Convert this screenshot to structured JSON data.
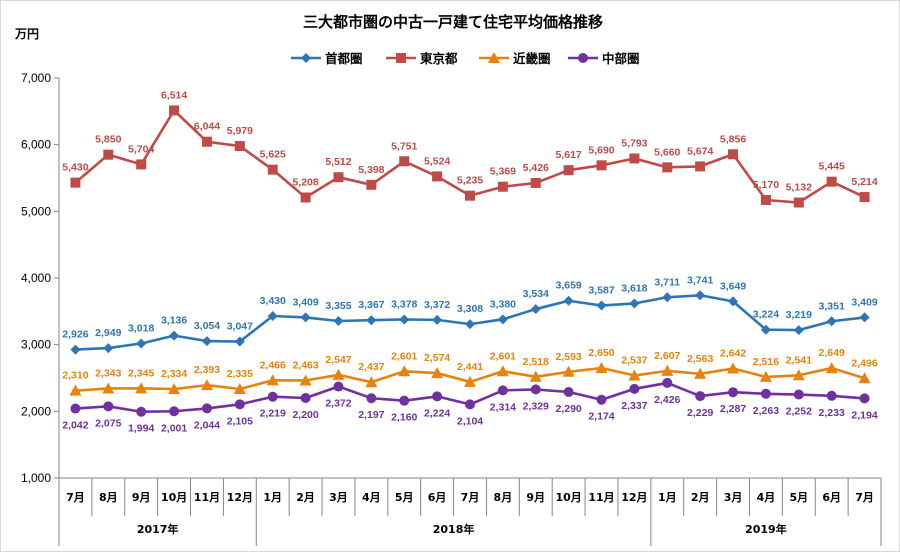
{
  "chart_data": {
    "type": "line",
    "title": "三大都市圏の中古一戸建て住宅平均価格推移",
    "ylabel": "万円",
    "ylim": [
      1000,
      7000
    ],
    "yticks": [
      "1,000",
      "2,000",
      "3,000",
      "4,000",
      "5,000",
      "6,000",
      "7,000"
    ],
    "categories": [
      "7月",
      "8月",
      "9月",
      "10月",
      "11月",
      "12月",
      "1月",
      "2月",
      "3月",
      "4月",
      "5月",
      "6月",
      "7月",
      "8月",
      "9月",
      "10月",
      "11月",
      "12月",
      "1月",
      "2月",
      "3月",
      "4月",
      "5月",
      "6月",
      "7月"
    ],
    "year_groups": [
      {
        "label": "2017年",
        "count": 6
      },
      {
        "label": "2018年",
        "count": 12
      },
      {
        "label": "2019年",
        "count": 7
      }
    ],
    "grid": false,
    "legend_position": "top",
    "series": [
      {
        "name": "首都圏",
        "color": "#2e75b6",
        "marker": "diamond",
        "label_position": "above",
        "values": [
          2926,
          2949,
          3018,
          3136,
          3054,
          3047,
          3430,
          3409,
          3355,
          3367,
          3378,
          3372,
          3308,
          3380,
          3534,
          3659,
          3587,
          3618,
          3711,
          3741,
          3649,
          3224,
          3219,
          3351,
          3409
        ],
        "labels": [
          "2,926",
          "2,949",
          "3,018",
          "3,136",
          "3,054",
          "3,047",
          "3,430",
          "3,409",
          "3,355",
          "3,367",
          "3,378",
          "3,372",
          "3,308",
          "3,380",
          "3,534",
          "3,659",
          "3,587",
          "3,618",
          "3,711",
          "3,741",
          "3,649",
          "3,224",
          "3,219",
          "3,351",
          "3,409"
        ]
      },
      {
        "name": "東京都",
        "color": "#be4b48",
        "marker": "square",
        "label_position": "above",
        "values": [
          5430,
          5850,
          5704,
          6514,
          6044,
          5979,
          5625,
          5208,
          5512,
          5398,
          5751,
          5524,
          5235,
          5369,
          5426,
          5617,
          5690,
          5793,
          5660,
          5674,
          5856,
          5170,
          5132,
          5445,
          5214
        ],
        "labels": [
          "5,430",
          "5,850",
          "5,704",
          "6,514",
          "6,044",
          "5,979",
          "5,625",
          "5,208",
          "5,512",
          "5,398",
          "5,751",
          "5,524",
          "5,235",
          "5,369",
          "5,426",
          "5,617",
          "5,690",
          "5,793",
          "5,660",
          "5,674",
          "5,856",
          "5,170",
          "5,132",
          "5,445",
          "5,214"
        ]
      },
      {
        "name": "近畿圏",
        "color": "#e8820c",
        "marker": "triangle",
        "label_position": "above",
        "values": [
          2310,
          2343,
          2345,
          2334,
          2393,
          2335,
          2466,
          2463,
          2547,
          2437,
          2601,
          2574,
          2441,
          2601,
          2518,
          2593,
          2650,
          2537,
          2607,
          2563,
          2642,
          2516,
          2541,
          2649,
          2496
        ],
        "labels": [
          "2,310",
          "2,343",
          "2,345",
          "2,334",
          "2,393",
          "2,335",
          "2,466",
          "2,463",
          "2,547",
          "2,437",
          "2,601",
          "2,574",
          "2,441",
          "2,601",
          "2,518",
          "2,593",
          "2,650",
          "2,537",
          "2,607",
          "2,563",
          "2,642",
          "2,516",
          "2,541",
          "2,649",
          "2,496"
        ]
      },
      {
        "name": "中部圏",
        "color": "#7030a0",
        "marker": "circle",
        "label_position": "below",
        "values": [
          2042,
          2075,
          1994,
          2001,
          2044,
          2105,
          2219,
          2200,
          2372,
          2197,
          2160,
          2224,
          2104,
          2314,
          2329,
          2290,
          2174,
          2337,
          2426,
          2229,
          2287,
          2263,
          2252,
          2233,
          2194
        ],
        "labels": [
          "2,042",
          "2,075",
          "1,994",
          "2,001",
          "2,044",
          "2,105",
          "2,219",
          "2,200",
          "2,372",
          "2,197",
          "2,160",
          "2,224",
          "2,104",
          "2,314",
          "2,329",
          "2,290",
          "2,174",
          "2,337",
          "2,426",
          "2,229",
          "2,287",
          "2,263",
          "2,252",
          "2,233",
          "2,194"
        ]
      }
    ]
  }
}
